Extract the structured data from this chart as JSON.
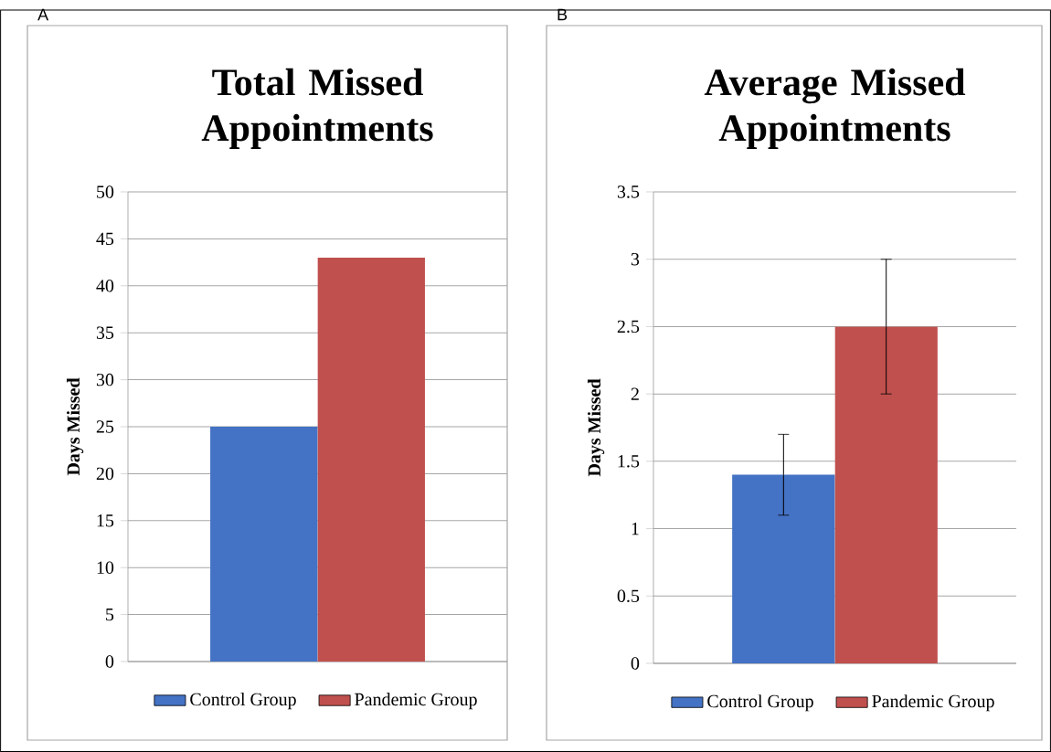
{
  "chart_data": [
    {
      "type": "bar",
      "title": "Total Missed Appointments",
      "ylabel": "Days Missed",
      "categories": [
        null
      ],
      "series": [
        {
          "name": "Control Group",
          "color": "#4472c4",
          "values": [
            25
          ]
        },
        {
          "name": "Pandemic Group",
          "color": "#c0504d",
          "values": [
            43
          ]
        }
      ],
      "ylim": [
        0,
        50
      ],
      "yticks": [
        0,
        5,
        10,
        15,
        20,
        25,
        30,
        35,
        40,
        45,
        50
      ],
      "grid": "y",
      "legend": "bottom",
      "annotations": [
        "A"
      ]
    },
    {
      "type": "bar",
      "title": "Average Missed Appointments",
      "ylabel": "Days Missed",
      "categories": [
        null
      ],
      "series": [
        {
          "name": "Control Group",
          "color": "#4472c4",
          "values": [
            1.4
          ],
          "errors": [
            0.3
          ]
        },
        {
          "name": "Pandemic Group",
          "color": "#c0504d",
          "values": [
            2.5
          ],
          "errors": [
            0.5
          ]
        }
      ],
      "ylim": [
        0,
        3.5
      ],
      "yticks": [
        0,
        0.5,
        1,
        1.5,
        2,
        2.5,
        3,
        3.5
      ],
      "grid": "y",
      "legend": "bottom",
      "annotations": [
        "B"
      ]
    }
  ]
}
